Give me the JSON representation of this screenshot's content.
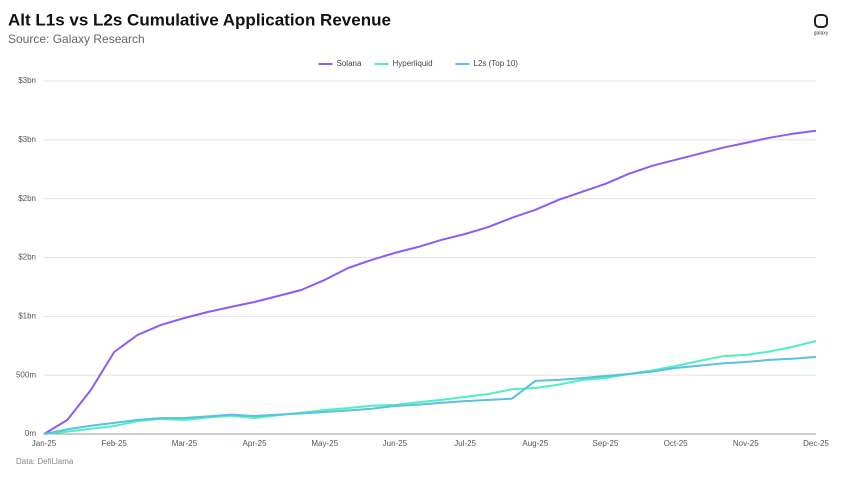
{
  "chart_data": {
    "type": "line",
    "title": "Alt L1s vs L2s Cumulative Application Revenue",
    "subtitle": "Source: Galaxy Research",
    "logo": "galaxy",
    "source_note": "Data: DefiLlama",
    "categories": [
      "Jan-25",
      null,
      null,
      "Feb-25",
      null,
      null,
      "Mar-25",
      null,
      null,
      "Apr-25",
      null,
      null,
      "May-25",
      null,
      null,
      "Jun-25",
      null,
      null,
      "Jul-25",
      null,
      null,
      "Aug-25",
      null,
      null,
      "Sep-25",
      null,
      null,
      "Oct-25",
      null,
      null,
      "Nov-25",
      null,
      null,
      "Dec-25"
    ],
    "series": [
      {
        "name": "Solana",
        "color": "#8b5cf6",
        "values": [
          0,
          120,
          374,
          697,
          842,
          927,
          986,
          1037,
          1080,
          1122,
          1173,
          1224,
          1310,
          1411,
          1480,
          1539,
          1590,
          1650,
          1700,
          1760,
          1837,
          1905,
          1990,
          2058,
          2126,
          2211,
          2279,
          2330,
          2381,
          2432,
          2474,
          2517,
          2551,
          2577
        ]
      },
      {
        "name": "Hyperliquid",
        "color": "#4ef0c0",
        "values": [
          0,
          20,
          45,
          68,
          110,
          130,
          119,
          140,
          155,
          136,
          160,
          180,
          204,
          220,
          240,
          247,
          270,
          290,
          315,
          340,
          380,
          391,
          420,
          460,
          476,
          510,
          540,
          578,
          620,
          660,
          672,
          700,
          740,
          790
        ]
      },
      {
        "name": "L2s (Top 10)",
        "color": "#5bbfe6",
        "values": [
          0,
          40,
          70,
          94,
          120,
          135,
          136,
          150,
          165,
          153,
          165,
          175,
          187,
          200,
          215,
          238,
          250,
          265,
          280,
          290,
          300,
          451,
          460,
          475,
          493,
          510,
          530,
          561,
          580,
          600,
          612,
          630,
          640,
          655
        ]
      }
    ],
    "ylim": [
      0,
      3000
    ],
    "yticks": [
      {
        "value": 0,
        "label": "0m"
      },
      {
        "value": 500,
        "label": "500m"
      },
      {
        "value": 1000,
        "label": "$1bn"
      },
      {
        "value": 1500,
        "label": "$2bn"
      },
      {
        "value": 2000,
        "label": "$2bn"
      },
      {
        "value": 2500,
        "label": "$3bn"
      },
      {
        "value": 3000,
        "label": "$3bn"
      }
    ],
    "grid": true
  }
}
